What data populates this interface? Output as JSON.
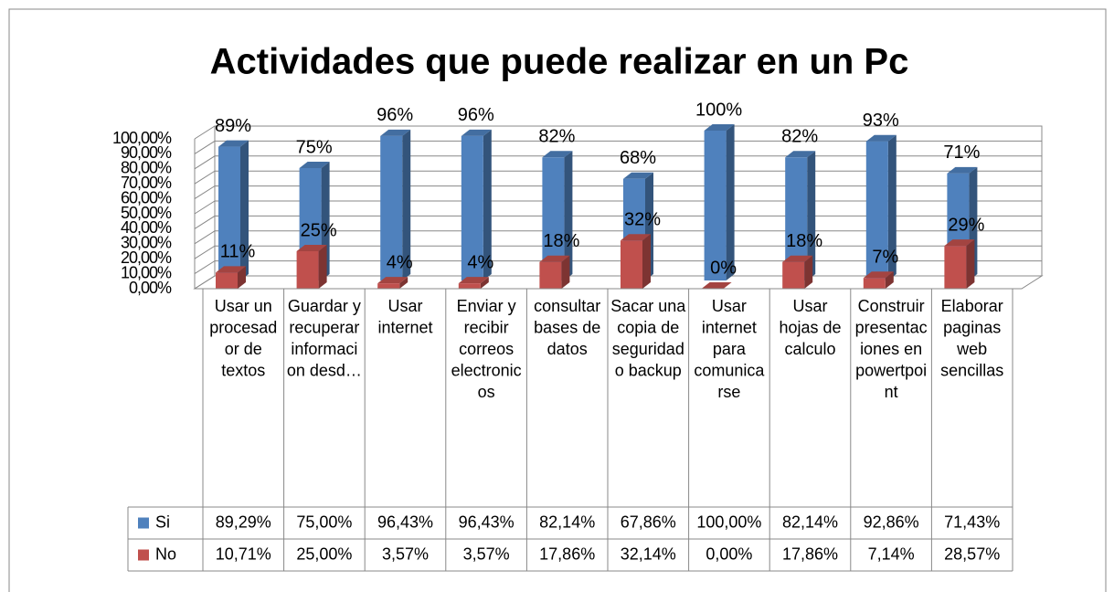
{
  "chart_data": {
    "type": "bar3d",
    "title": "Actividades que puede realizar en un Pc",
    "categories": [
      "Usar un procesador de textos",
      "Guardar y recuperar informacion desd…",
      "Usar internet",
      "Enviar y recibir correos electronicos",
      "consultar bases de datos",
      "Sacar una copia de seguridad o backup",
      "Usar internet para comunicarse",
      "Usar hojas de calculo",
      "Construir presentaciones en powertpoint",
      "Elaborar paginas web sencillas"
    ],
    "series": [
      {
        "name": "Si",
        "color": "#4f81bd",
        "values": [
          89.29,
          75.0,
          96.43,
          96.43,
          82.14,
          67.86,
          100.0,
          82.14,
          92.86,
          71.43
        ],
        "value_labels": [
          "89%",
          "75%",
          "96%",
          "96%",
          "82%",
          "68%",
          "100%",
          "82%",
          "93%",
          "71%"
        ],
        "table_labels": [
          "89,29%",
          "75,00%",
          "96,43%",
          "96,43%",
          "82,14%",
          "67,86%",
          "100,00%",
          "82,14%",
          "92,86%",
          "71,43%"
        ]
      },
      {
        "name": "No",
        "color": "#c0504d",
        "values": [
          10.71,
          25.0,
          3.57,
          3.57,
          17.86,
          32.14,
          0.0,
          17.86,
          7.14,
          28.57
        ],
        "value_labels": [
          "11%",
          "25%",
          "4%",
          "4%",
          "18%",
          "32%",
          "0%",
          "18%",
          "7%",
          "29%"
        ],
        "table_labels": [
          "10,71%",
          "25,00%",
          "3,57%",
          "3,57%",
          "17,86%",
          "32,14%",
          "0,00%",
          "17,86%",
          "7,14%",
          "28,57%"
        ]
      }
    ],
    "ylim": [
      0,
      100
    ],
    "yticks": [
      {
        "value": 0,
        "label": "0,00%"
      },
      {
        "value": 10,
        "label": "10,00%"
      },
      {
        "value": 20,
        "label": "20,00%"
      },
      {
        "value": 30,
        "label": "30,00%"
      },
      {
        "value": 40,
        "label": "40,00%"
      },
      {
        "value": 50,
        "label": "50,00%"
      },
      {
        "value": 60,
        "label": "60,00%"
      },
      {
        "value": 70,
        "label": "70,00%"
      },
      {
        "value": 80,
        "label": "80,00%"
      },
      {
        "value": 90,
        "label": "90,00%"
      },
      {
        "value": 100,
        "label": "100,00%"
      }
    ],
    "grid": true
  }
}
